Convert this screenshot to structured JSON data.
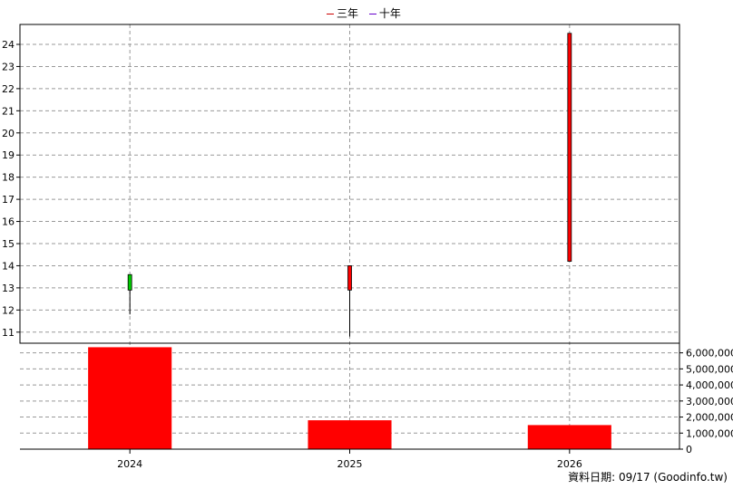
{
  "chart_data": {
    "type": "candlestick+bar",
    "categories": [
      "2024",
      "2025",
      "2026"
    ],
    "legend": [
      {
        "label": "三年",
        "color": "#cc0000"
      },
      {
        "label": "十年",
        "color": "#6600cc"
      }
    ],
    "price_axis": {
      "ylim": [
        10.5,
        24.9
      ],
      "ticks": [
        11,
        12,
        13,
        14,
        15,
        16,
        17,
        18,
        19,
        20,
        21,
        22,
        23,
        24
      ]
    },
    "volume_axis": {
      "ylim": [
        0,
        6600000
      ],
      "ticks": [
        0,
        1000000,
        2000000,
        3000000,
        4000000,
        5000000,
        6000000
      ],
      "tick_labels": [
        "0",
        "1,000,000",
        "2,000,000",
        "3,000,000",
        "4,000,000",
        "5,000,000",
        "6,000,000"
      ]
    },
    "candles": [
      {
        "category": "2024",
        "open": 13.6,
        "close": 12.9,
        "high": 13.6,
        "low": 11.8,
        "color": "#00cc00"
      },
      {
        "category": "2025",
        "open": 12.9,
        "close": 14.0,
        "high": 14.0,
        "low": 10.8,
        "color": "#ff0000"
      },
      {
        "category": "2026",
        "open": 14.2,
        "close": 24.5,
        "high": 24.5,
        "low": 14.2,
        "color": "#ff0000"
      }
    ],
    "volumes": [
      {
        "category": "2024",
        "value": 6350000
      },
      {
        "category": "2025",
        "value": 1800000
      },
      {
        "category": "2026",
        "value": 1500000
      }
    ],
    "volume_color": "#ff0000",
    "grid": true
  },
  "footer": "資料日期: 09/17  (Goodinfo.tw)"
}
